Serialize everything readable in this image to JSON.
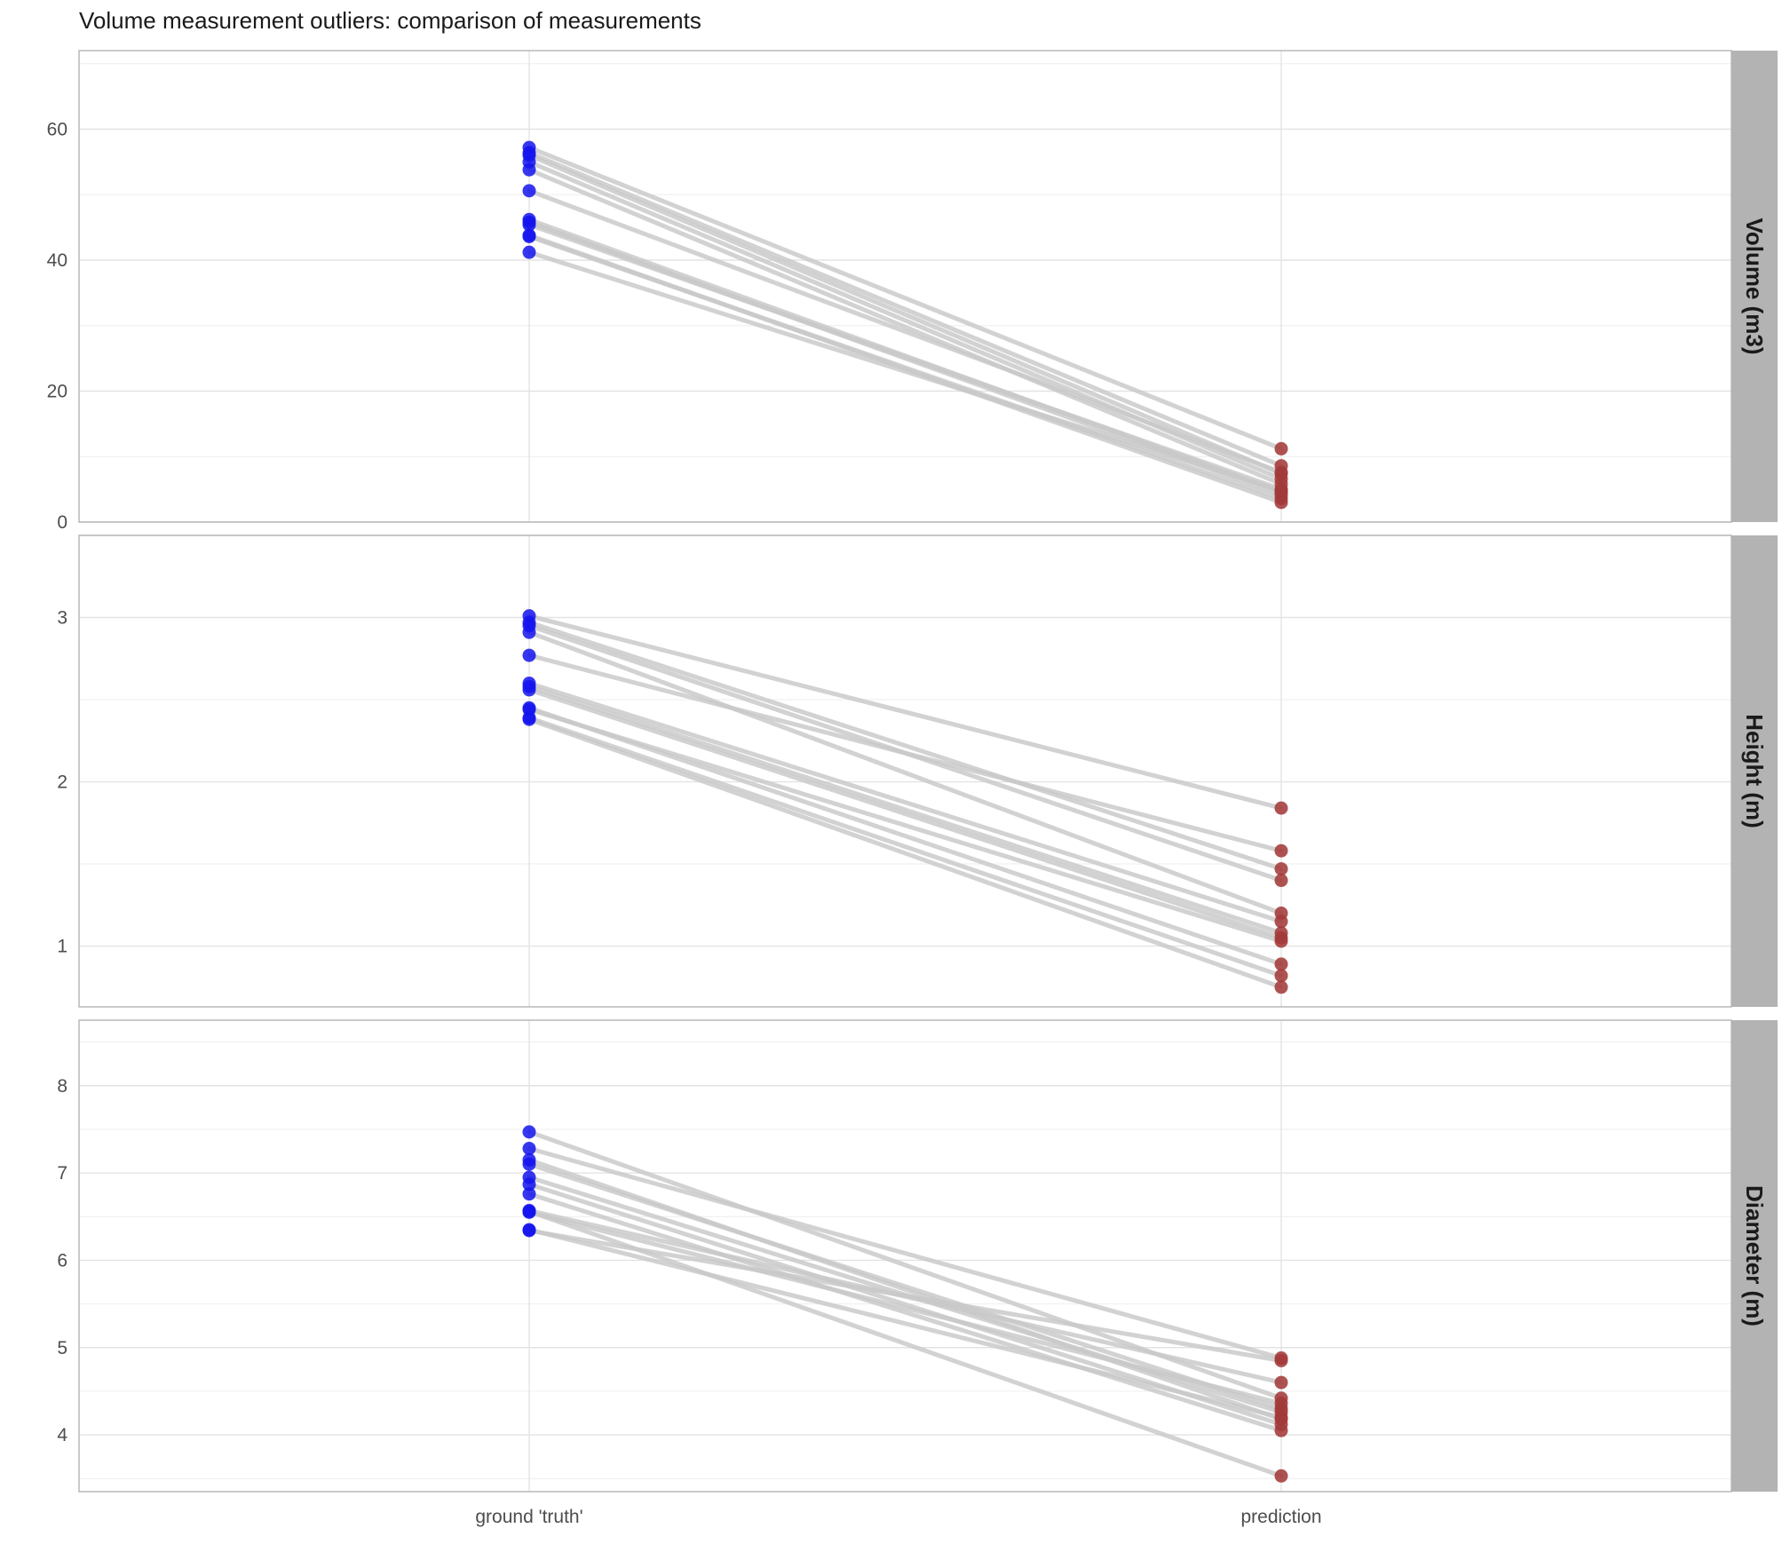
{
  "chart_data": {
    "type": "line",
    "title": "Volume measurement outliers: comparison of measurements",
    "categories": [
      "ground 'truth'",
      "prediction"
    ],
    "legend": "none",
    "grid": true,
    "series_colors": {
      "ground_truth": "#1414ee",
      "prediction": "#a33a3a",
      "connector": "#c8c8c8"
    },
    "facets": [
      {
        "label": "Volume (m3)",
        "ylim": [
          0,
          72
        ],
        "ticks": [
          0,
          20,
          40,
          60
        ],
        "pairs": [
          [
            57.2,
            11.2
          ],
          [
            56.4,
            8.6
          ],
          [
            56.0,
            7.4
          ],
          [
            55.0,
            6.6
          ],
          [
            53.8,
            5.8
          ],
          [
            50.6,
            7.6
          ],
          [
            46.2,
            4.6
          ],
          [
            45.8,
            4.2
          ],
          [
            45.4,
            5.0
          ],
          [
            43.8,
            3.0
          ],
          [
            43.6,
            3.6
          ],
          [
            41.2,
            4.8
          ]
        ]
      },
      {
        "label": "Height (m)",
        "ylim": [
          0.63,
          3.5
        ],
        "ticks": [
          1,
          2,
          3
        ],
        "pairs": [
          [
            3.01,
            1.84
          ],
          [
            2.97,
            1.47
          ],
          [
            2.95,
            1.4
          ],
          [
            2.91,
            1.2
          ],
          [
            2.77,
            1.58
          ],
          [
            2.6,
            1.15
          ],
          [
            2.58,
            1.08
          ],
          [
            2.56,
            1.05
          ],
          [
            2.45,
            0.89
          ],
          [
            2.44,
            1.03
          ],
          [
            2.39,
            0.82
          ],
          [
            2.38,
            0.75
          ]
        ]
      },
      {
        "label": "Diameter (m)",
        "ylim": [
          3.35,
          8.75
        ],
        "ticks": [
          4,
          5,
          6,
          7,
          8
        ],
        "pairs": [
          [
            7.47,
            4.42
          ],
          [
            7.28,
            4.88
          ],
          [
            7.15,
            4.18
          ],
          [
            7.1,
            4.3
          ],
          [
            6.95,
            4.26
          ],
          [
            6.87,
            4.12
          ],
          [
            6.76,
            4.05
          ],
          [
            6.57,
            4.6
          ],
          [
            6.56,
            3.53
          ],
          [
            6.55,
            4.36
          ],
          [
            6.34,
            4.85
          ],
          [
            6.35,
            4.2
          ]
        ]
      }
    ]
  }
}
